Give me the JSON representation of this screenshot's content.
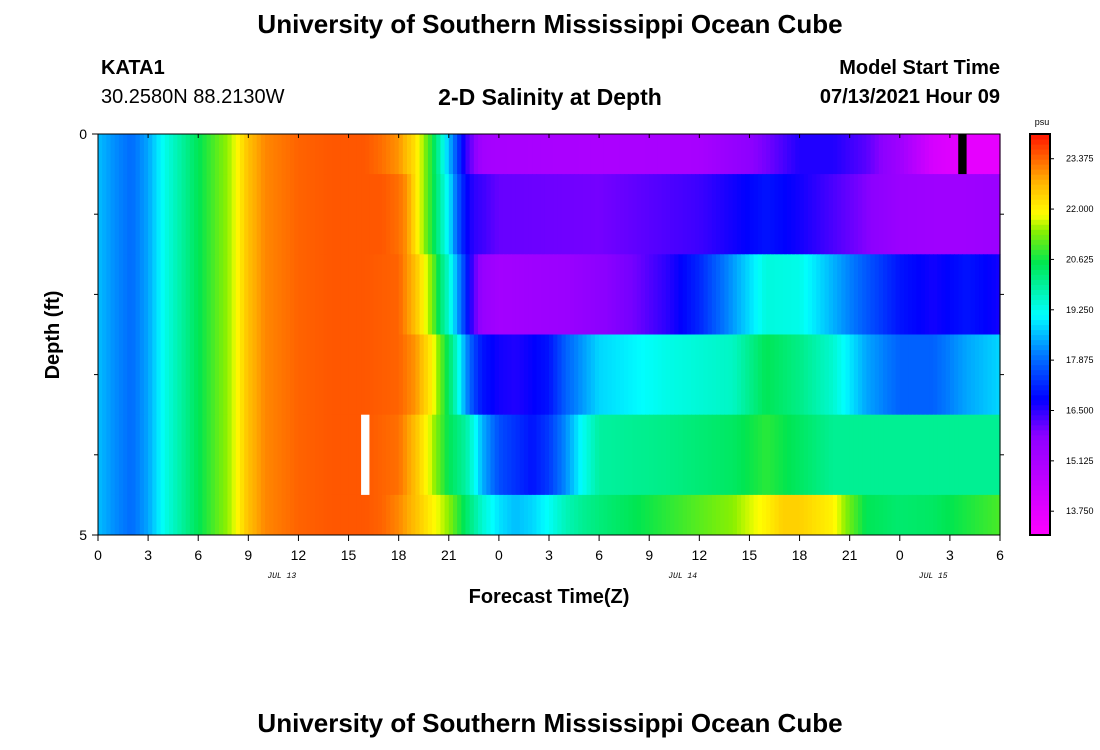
{
  "header": {
    "title": "University of Southern Mississippi Ocean Cube",
    "station_id": "KATA1",
    "coords": "30.2580N  88.2130W",
    "chart_title": "2-D Salinity at Depth",
    "start_label": "Model Start Time",
    "start_value": "07/13/2021 Hour 09"
  },
  "footer": {
    "title": "University of Southern Mississippi Ocean Cube"
  },
  "chart_data": {
    "type": "heatmap",
    "title": "2-D Salinity at Depth",
    "xlabel": "Forecast Time(Z)",
    "ylabel": "Depth (ft)",
    "units": "psu",
    "x_range_hours": [
      0,
      54
    ],
    "y_range_ft": [
      0,
      5
    ],
    "y_tick_labels": [
      "0",
      "5"
    ],
    "y_minor_ticks": [
      1,
      2,
      3,
      4
    ],
    "x_tick_labels": [
      "0",
      "3",
      "6",
      "9",
      "12",
      "15",
      "18",
      "21",
      "0",
      "3",
      "6",
      "9",
      "12",
      "15",
      "18",
      "21",
      "0",
      "3",
      "6"
    ],
    "date_labels": [
      {
        "hour": 11,
        "label": "JUL 13"
      },
      {
        "hour": 35,
        "label": "JUL 14"
      },
      {
        "hour": 50,
        "label": "JUL 15"
      }
    ],
    "colorbar": {
      "min": 13.1,
      "max": 24.05,
      "labels": [
        "23.375",
        "22.000",
        "20.625",
        "19.250",
        "17.875",
        "16.500",
        "15.125",
        "13.750"
      ],
      "label_values": [
        23.375,
        22.0,
        20.625,
        19.25,
        17.875,
        16.5,
        15.125,
        13.75
      ]
    },
    "missing_cells": [
      {
        "layer": 0,
        "hour": 51.75,
        "color": "#000000"
      },
      {
        "layer": 4,
        "hour": 16,
        "color": "#ffffff"
      }
    ],
    "layers": [
      {
        "depth_range_ft": [
          0,
          0.5
        ],
        "hours": [
          0,
          1,
          2,
          3,
          4,
          6,
          8,
          9,
          10,
          12,
          14,
          16,
          17,
          18,
          19,
          20,
          20.5,
          21,
          22,
          23,
          24,
          30,
          36,
          40,
          42,
          44,
          46,
          48,
          50,
          52,
          54
        ],
        "values": [
          18.6,
          18.2,
          17.9,
          18.4,
          19.3,
          20.5,
          21.6,
          22.6,
          23.1,
          23.4,
          23.5,
          23.5,
          23.3,
          23.0,
          22.2,
          20.7,
          19.7,
          18.6,
          16.5,
          15.3,
          15.2,
          15.1,
          15.2,
          16.0,
          16.6,
          16.6,
          16.2,
          15.4,
          14.1,
          13.7,
          13.7
        ]
      },
      {
        "depth_range_ft": [
          0.5,
          1.5
        ],
        "hours": [
          0,
          1,
          2,
          3,
          4,
          6,
          8,
          9,
          10,
          12,
          14,
          16,
          17,
          18,
          18.5,
          19,
          20,
          21,
          21.5,
          22,
          22.5,
          23,
          24,
          30,
          36,
          40,
          42,
          44,
          46,
          48,
          50,
          52,
          54
        ],
        "values": [
          18.6,
          18.2,
          17.9,
          18.4,
          19.3,
          20.5,
          21.6,
          22.6,
          23.1,
          23.4,
          23.5,
          23.5,
          23.5,
          23.3,
          23.0,
          22.2,
          20.7,
          19.0,
          17.8,
          16.9,
          16.5,
          16.4,
          16.1,
          16.0,
          16.4,
          17.0,
          16.7,
          16.3,
          15.9,
          15.5,
          15.4,
          15.4,
          15.5
        ]
      },
      {
        "depth_range_ft": [
          1.5,
          2.5
        ],
        "hours": [
          0,
          1,
          2,
          3,
          4,
          6,
          8,
          9,
          10,
          12,
          14,
          16,
          18,
          19,
          20,
          20.5,
          21,
          21.5,
          22,
          22.5,
          23,
          24,
          28,
          30,
          32,
          34,
          36,
          38,
          40,
          42,
          44,
          46,
          48,
          50,
          52,
          54
        ],
        "values": [
          18.6,
          18.2,
          17.9,
          18.4,
          19.3,
          20.5,
          21.6,
          22.6,
          23.1,
          23.4,
          23.5,
          23.5,
          23.4,
          22.6,
          21.3,
          20.3,
          19.5,
          18.4,
          17.3,
          16.2,
          15.6,
          15.3,
          15.5,
          15.8,
          16.0,
          16.5,
          17.2,
          18.3,
          19.4,
          19.3,
          18.5,
          17.7,
          17.0,
          16.7,
          17.0,
          16.7
        ]
      },
      {
        "depth_range_ft": [
          2.5,
          3.5
        ],
        "hours": [
          0,
          1,
          2,
          3,
          4,
          6,
          8,
          9,
          10,
          12,
          14,
          16,
          18,
          19,
          20,
          21,
          21.5,
          22,
          22.5,
          23,
          24,
          25,
          27,
          28,
          30,
          34,
          38,
          40,
          42,
          44,
          46,
          48,
          50,
          52,
          54
        ],
        "values": [
          18.6,
          18.2,
          17.9,
          18.4,
          19.3,
          20.5,
          21.6,
          22.6,
          23.1,
          23.4,
          23.5,
          23.5,
          23.4,
          23.0,
          22.0,
          20.4,
          19.5,
          18.3,
          17.5,
          17.0,
          16.7,
          16.6,
          17.0,
          17.8,
          18.8,
          19.3,
          19.6,
          20.5,
          20.1,
          19.5,
          18.4,
          17.8,
          17.8,
          18.4,
          18.8
        ]
      },
      {
        "depth_range_ft": [
          3.5,
          4.5
        ],
        "hours": [
          0,
          1,
          2,
          3,
          4,
          6,
          8,
          9,
          10,
          12,
          14,
          16,
          18,
          19,
          20,
          21,
          22,
          22.5,
          23,
          24,
          26,
          27,
          28,
          29,
          30,
          34,
          38,
          40,
          42,
          44,
          46,
          48,
          50,
          52,
          54
        ],
        "values": [
          18.6,
          18.2,
          17.9,
          18.4,
          19.3,
          20.5,
          21.6,
          22.6,
          23.1,
          23.4,
          23.5,
          23.5,
          23.3,
          22.6,
          21.6,
          20.5,
          19.9,
          19.3,
          18.5,
          17.6,
          17.0,
          17.4,
          18.2,
          19.2,
          19.9,
          20.1,
          20.4,
          20.8,
          20.4,
          20.0,
          20.0,
          20.0,
          20.0,
          20.0,
          20.0
        ]
      },
      {
        "depth_range_ft": [
          4.5,
          5
        ],
        "hours": [
          0,
          1,
          2,
          3,
          4,
          6,
          8,
          9,
          10,
          12,
          14,
          16,
          17,
          18,
          19,
          20,
          21,
          22,
          23,
          24,
          25,
          26,
          27,
          28,
          29,
          30,
          34,
          38,
          40,
          41,
          42,
          44,
          45,
          46,
          48,
          50,
          52,
          54
        ],
        "values": [
          18.6,
          18.2,
          17.9,
          18.4,
          19.3,
          20.5,
          21.6,
          22.6,
          23.1,
          23.4,
          23.5,
          23.5,
          23.4,
          23.1,
          22.6,
          22.0,
          21.4,
          20.4,
          19.5,
          18.9,
          18.6,
          18.8,
          19.2,
          19.7,
          20.0,
          20.2,
          20.8,
          21.4,
          22.0,
          22.4,
          22.4,
          22.0,
          21.2,
          20.5,
          20.3,
          20.4,
          20.7,
          21.0
        ]
      }
    ]
  }
}
